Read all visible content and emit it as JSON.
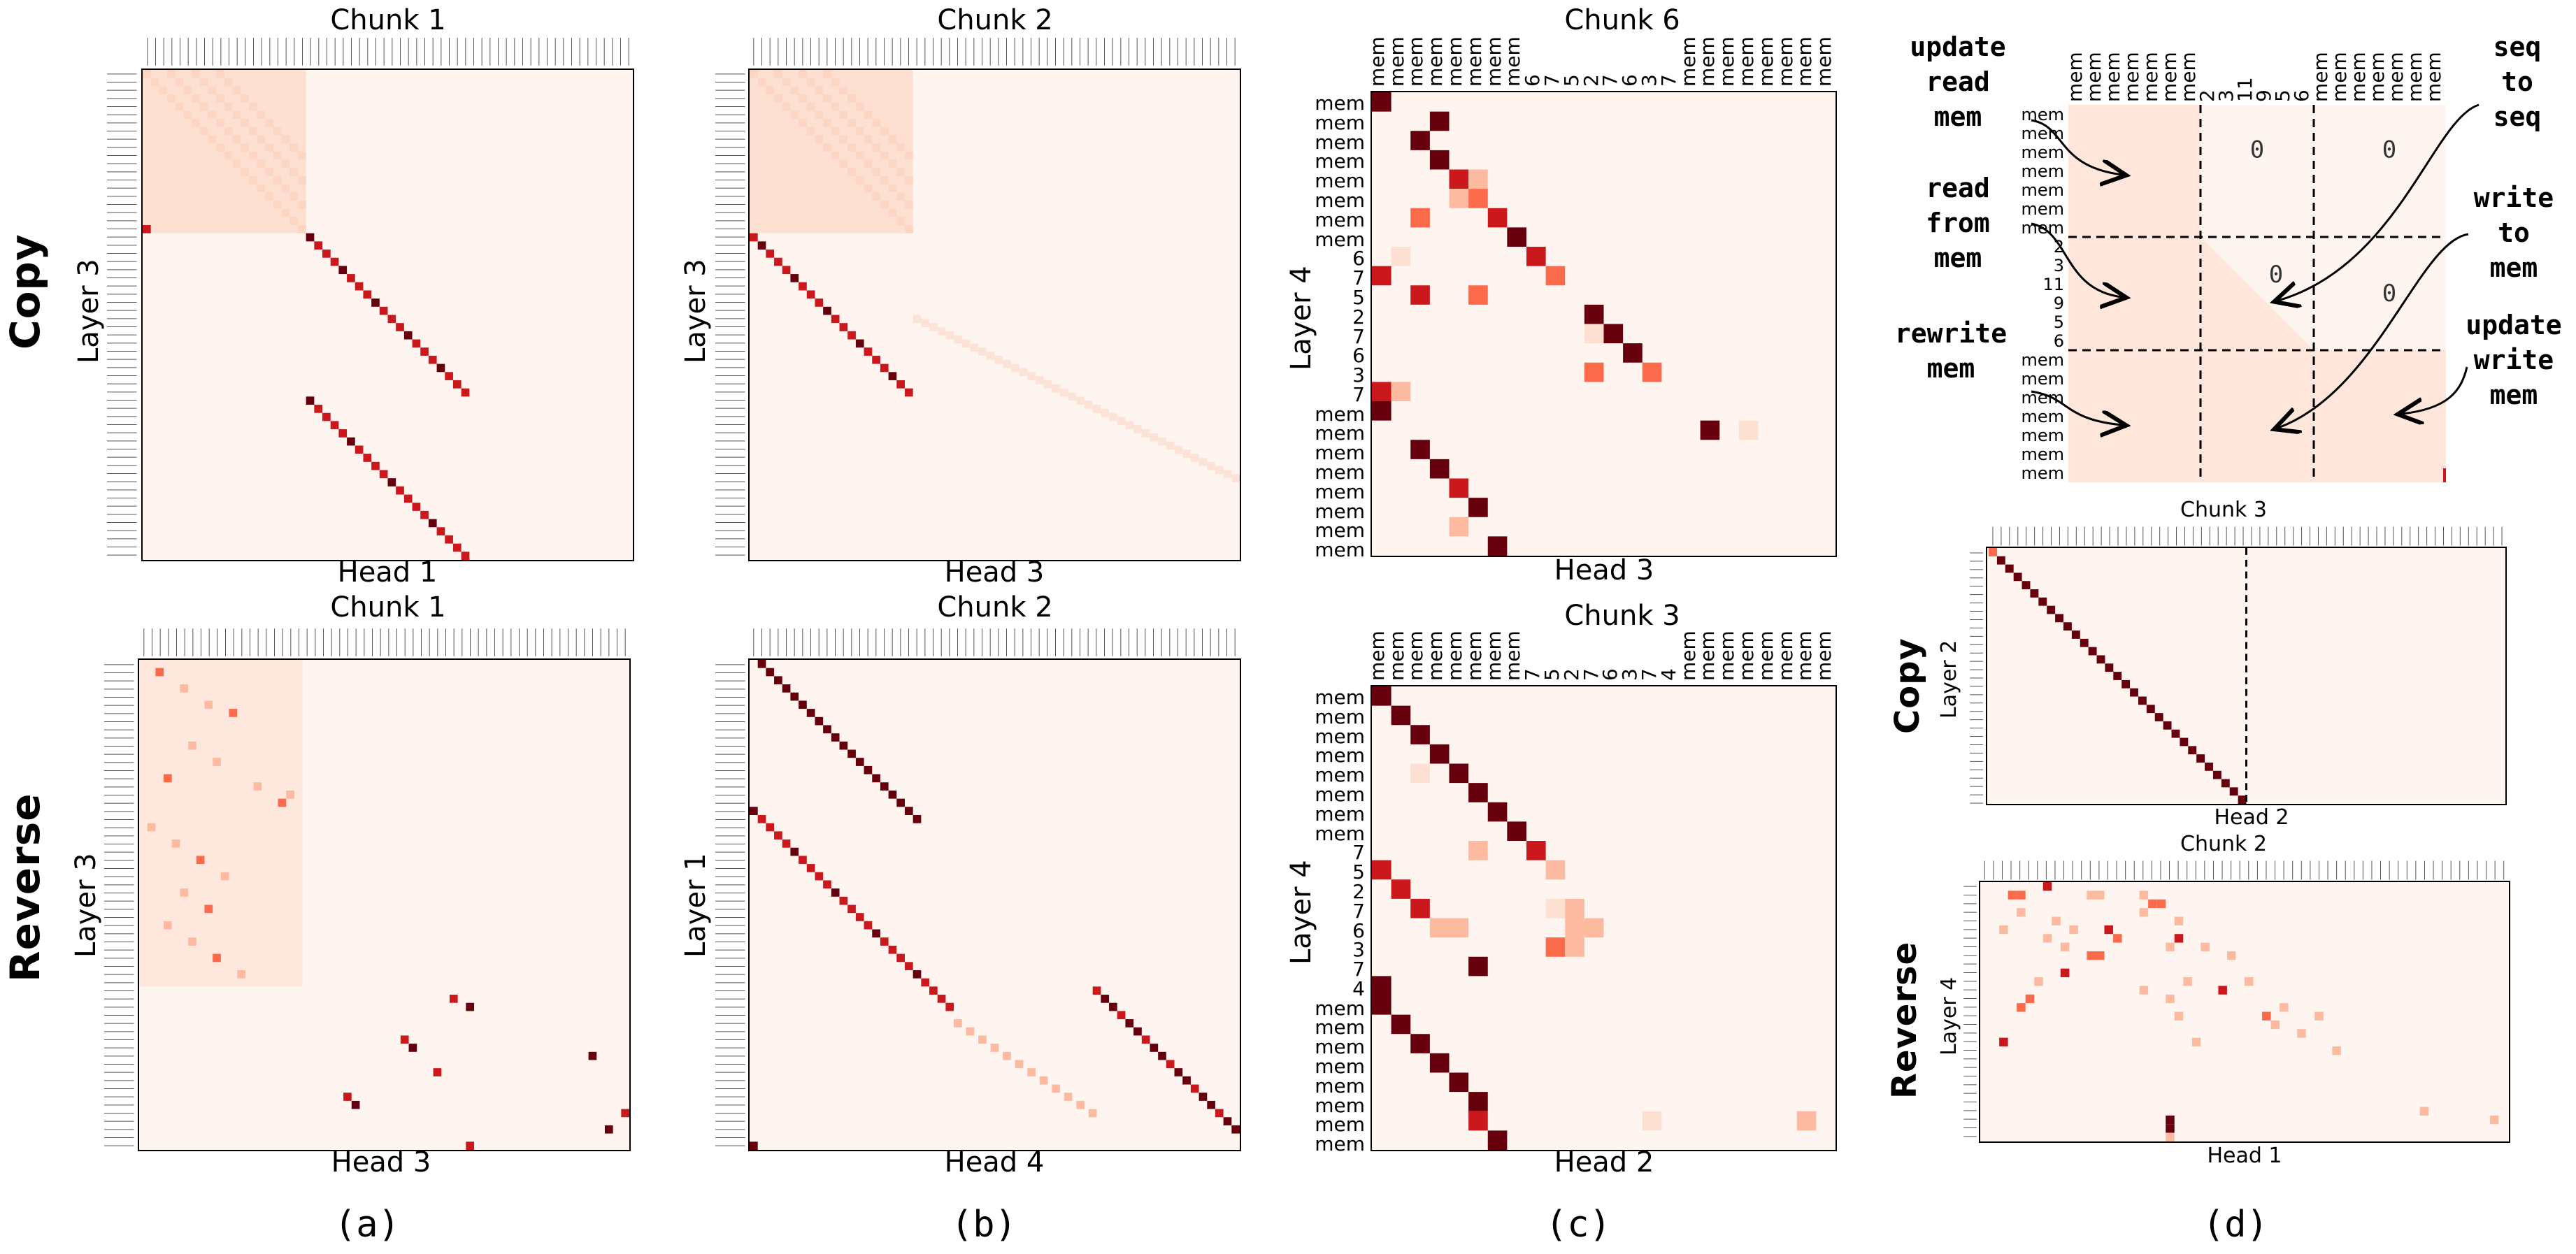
{
  "captions": {
    "a": "(a)",
    "b": "(b)",
    "c": "(c)",
    "d": "(d)"
  },
  "row_labels": {
    "copy": "Copy",
    "reverse": "Reverse"
  },
  "panels": {
    "a_top": {
      "title": "Chunk 1",
      "ylabel": "Layer 3",
      "xlabel": "Head 1"
    },
    "b_top": {
      "title": "Chunk 2",
      "ylabel": "Layer 3",
      "xlabel": "Head 3"
    },
    "c_top": {
      "title": "Chunk 6",
      "ylabel": "Layer 4",
      "xlabel": "Head 3"
    },
    "a_bot": {
      "title": "Chunk 1",
      "ylabel": "Layer 3",
      "xlabel": "Head 3"
    },
    "b_bot": {
      "title": "Chunk 2",
      "ylabel": "Layer 1",
      "xlabel": "Head 4"
    },
    "c_bot": {
      "title": "Chunk 3",
      "ylabel": "Layer 4",
      "xlabel": "Head 2"
    },
    "d_mid": {
      "title": "Chunk 3",
      "ylabel": "Layer 2",
      "xlabel": "Head 2",
      "rowlabel": "Copy"
    },
    "d_bot": {
      "title": "Chunk 2",
      "ylabel": "Layer 4",
      "xlabel": "Head 1",
      "rowlabel": "Reverse"
    }
  },
  "c_top_ticks": {
    "cols": [
      "mem",
      "mem",
      "mem",
      "mem",
      "mem",
      "mem",
      "mem",
      "mem",
      "6",
      "7",
      "5",
      "2",
      "7",
      "6",
      "3",
      "7",
      "mem",
      "mem",
      "mem",
      "mem",
      "mem",
      "mem",
      "mem",
      "mem"
    ],
    "rows": [
      "mem",
      "mem",
      "mem",
      "mem",
      "mem",
      "mem",
      "mem",
      "mem",
      "6",
      "7",
      "5",
      "2",
      "7",
      "6",
      "3",
      "7",
      "mem",
      "mem",
      "mem",
      "mem",
      "mem",
      "mem",
      "mem",
      "mem"
    ]
  },
  "c_bot_ticks": {
    "cols": [
      "mem",
      "mem",
      "mem",
      "mem",
      "mem",
      "mem",
      "mem",
      "mem",
      "7",
      "5",
      "2",
      "7",
      "6",
      "3",
      "7",
      "4",
      "mem",
      "mem",
      "mem",
      "mem",
      "mem",
      "mem",
      "mem",
      "mem"
    ],
    "rows": [
      "mem",
      "mem",
      "mem",
      "mem",
      "mem",
      "mem",
      "mem",
      "mem",
      "7",
      "5",
      "2",
      "7",
      "6",
      "3",
      "7",
      "4",
      "mem",
      "mem",
      "mem",
      "mem",
      "mem",
      "mem",
      "mem",
      "mem"
    ]
  },
  "schematic": {
    "col_ticks": [
      "mem",
      "mem",
      "mem",
      "mem",
      "mem",
      "mem",
      "mem",
      "2",
      "3",
      "11",
      "9",
      "5",
      "6",
      "mem",
      "mem",
      "mem",
      "mem",
      "mem",
      "mem",
      "mem"
    ],
    "row_ticks": [
      "mem",
      "mem",
      "mem",
      "mem",
      "mem",
      "mem",
      "mem",
      "2",
      "3",
      "11",
      "9",
      "5",
      "6",
      "mem",
      "mem",
      "mem",
      "mem",
      "mem",
      "mem",
      "mem"
    ],
    "zero_labels": [
      "0",
      "0",
      "0",
      "0"
    ],
    "annotations": {
      "update_read": "update\nread\nmem",
      "read_from": "read\nfrom\nmem",
      "rewrite": "rewrite\nmem",
      "seq_to_seq": "seq\nto\nseq",
      "write_to": "write\nto\nmem",
      "update_write": "update\nwrite\nmem"
    }
  },
  "colors": {
    "background": "#fff5f0",
    "dark": "#67000d",
    "mid": "#cb181d",
    "light": "#fcbba1",
    "faint": "#fee0d2"
  }
}
